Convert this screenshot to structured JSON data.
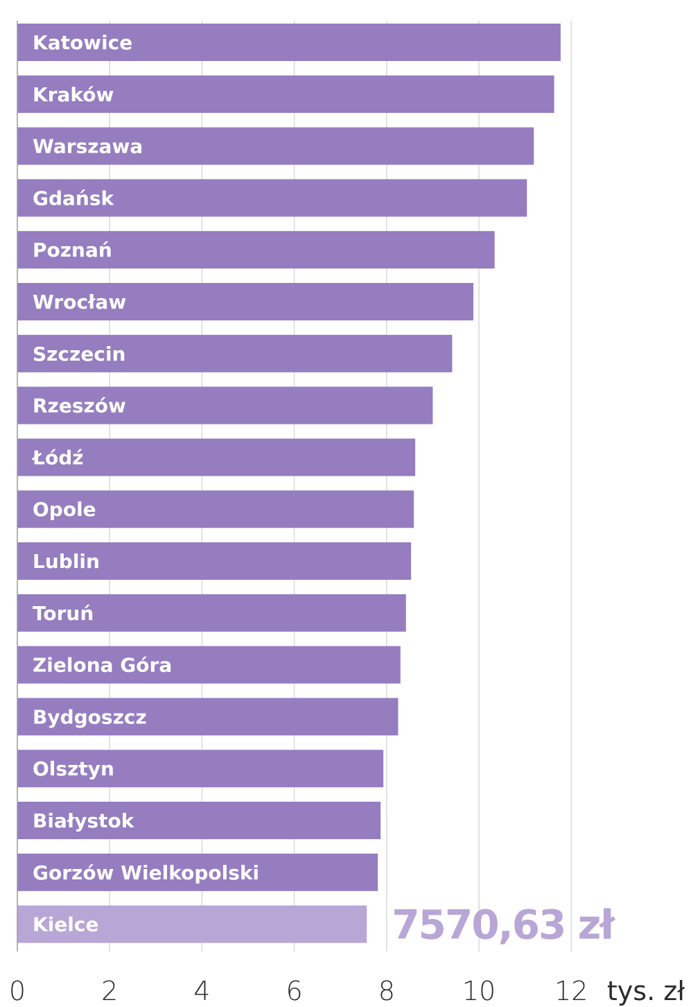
{
  "chart_data": {
    "type": "bar",
    "orientation": "horizontal",
    "categories": [
      "Katowice",
      "Kraków",
      "Warszawa",
      "Gdańsk",
      "Poznań",
      "Wrocław",
      "Szczecin",
      "Rzeszów",
      "Łódź",
      "Opole",
      "Lublin",
      "Toruń",
      "Zielona Góra",
      "Bydgoszcz",
      "Olsztyn",
      "Białystok",
      "Gorzów Wielkopolski",
      "Kielce"
    ],
    "values": [
      11.77,
      11.63,
      11.19,
      11.04,
      10.34,
      9.88,
      9.42,
      9.0,
      8.62,
      8.59,
      8.53,
      8.42,
      8.3,
      8.25,
      7.93,
      7.87,
      7.81,
      7.57063
    ],
    "xlim": [
      0,
      12
    ],
    "ticks": [
      0,
      2,
      4,
      6,
      8,
      10,
      12
    ],
    "tick_labels": [
      "0",
      "2",
      "4",
      "6",
      "8",
      "10",
      "12"
    ],
    "unit_label": "tys. zł",
    "highlight": {
      "category": "Kielce",
      "label": "7570,63 zł"
    },
    "grid": true,
    "colors": {
      "bar": "#957dc0",
      "highlight_bar": "#b8a6d6",
      "annotation": "#b8a6d6",
      "grid": "#d9d9d9",
      "axis": "#9a9a9a"
    }
  }
}
